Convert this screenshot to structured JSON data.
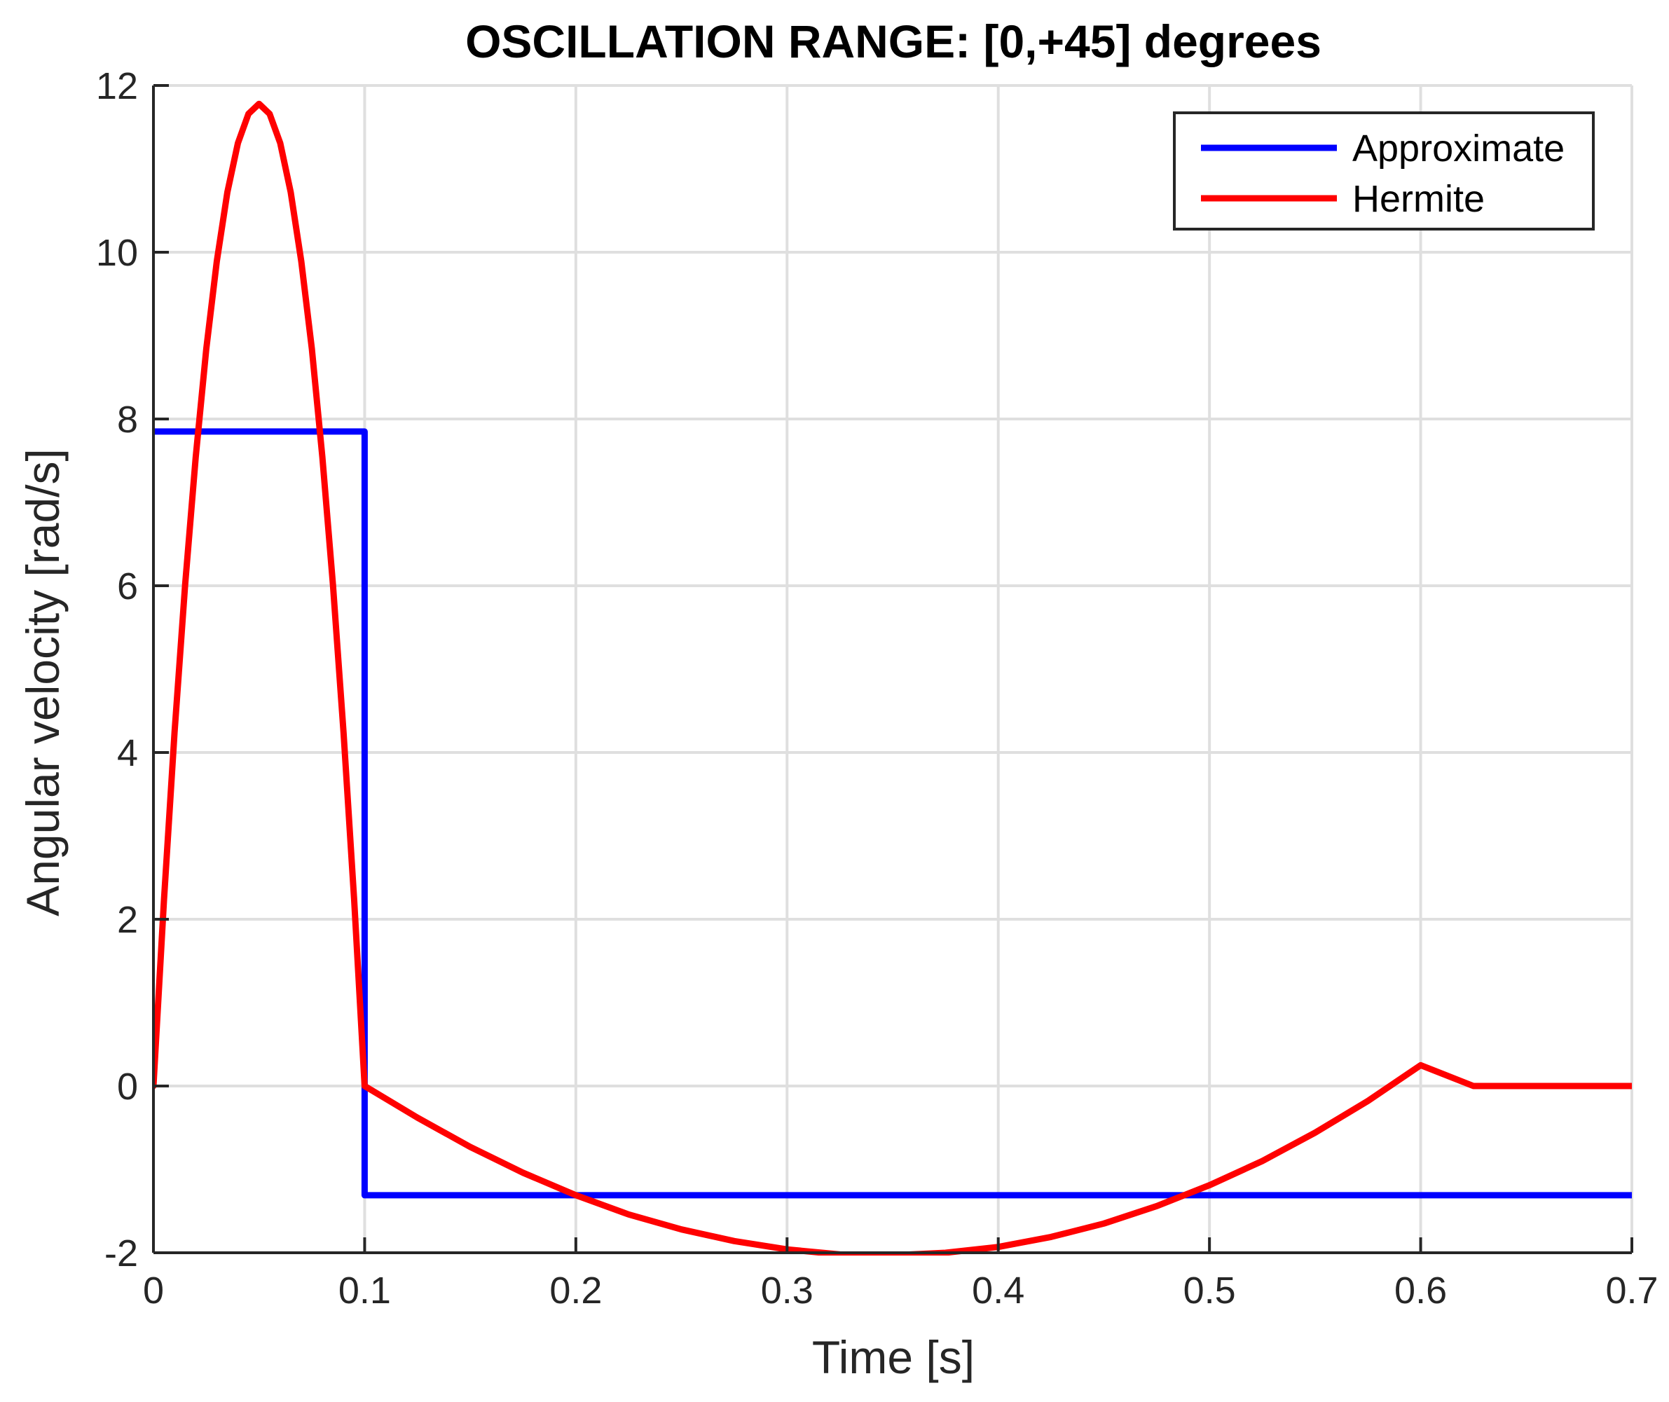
{
  "chart_data": {
    "type": "line",
    "title": "OSCILLATION RANGE: [0,+45] degrees",
    "xlabel": "Time [s]",
    "ylabel": "Angular velocity [rad/s]",
    "xlim": [
      0,
      0.7
    ],
    "ylim": [
      -2,
      12
    ],
    "xticks": [
      0,
      0.1,
      0.2,
      0.3,
      0.4,
      0.5,
      0.6,
      0.7
    ],
    "xtick_labels": [
      "0",
      "0.1",
      "0.2",
      "0.3",
      "0.4",
      "0.5",
      "0.6",
      "0.7"
    ],
    "yticks": [
      -2,
      0,
      2,
      4,
      6,
      8,
      10,
      12
    ],
    "ytick_labels": [
      "-2",
      "0",
      "2",
      "4",
      "6",
      "8",
      "10",
      "12"
    ],
    "grid": true,
    "legend_position": "top-right",
    "series": [
      {
        "name": "Approximate",
        "color": "#0000ff",
        "x": [
          0,
          0.1,
          0.1,
          0.7
        ],
        "y": [
          7.85,
          7.85,
          -1.31,
          -1.31
        ]
      },
      {
        "name": "Hermite",
        "color": "#ff0000",
        "x": [
          0,
          0.005,
          0.01,
          0.015,
          0.02,
          0.025,
          0.03,
          0.035,
          0.04,
          0.045,
          0.05,
          0.055,
          0.06,
          0.065,
          0.07,
          0.075,
          0.08,
          0.085,
          0.09,
          0.095,
          0.1,
          0.125,
          0.15,
          0.175,
          0.2,
          0.225,
          0.25,
          0.275,
          0.3,
          0.325,
          0.35,
          0.375,
          0.4,
          0.425,
          0.45,
          0.475,
          0.5,
          0.525,
          0.55,
          0.575,
          0.6,
          0.625,
          0.65,
          0.675,
          0.7
        ],
        "y": [
          0,
          2.24,
          4.24,
          6.01,
          7.54,
          8.84,
          9.89,
          10.72,
          11.31,
          11.66,
          11.78,
          11.66,
          11.31,
          10.72,
          9.89,
          8.84,
          7.54,
          6.01,
          4.24,
          2.24,
          0,
          -0.38,
          -0.73,
          -1.04,
          -1.31,
          -1.54,
          -1.72,
          -1.86,
          -1.96,
          -2.02,
          -2.03,
          -2.0,
          -1.93,
          -1.81,
          -1.65,
          -1.44,
          -1.19,
          -0.9,
          -0.56,
          -0.18,
          0.25,
          0.0,
          0.0,
          0.0,
          0.0
        ]
      }
    ]
  }
}
